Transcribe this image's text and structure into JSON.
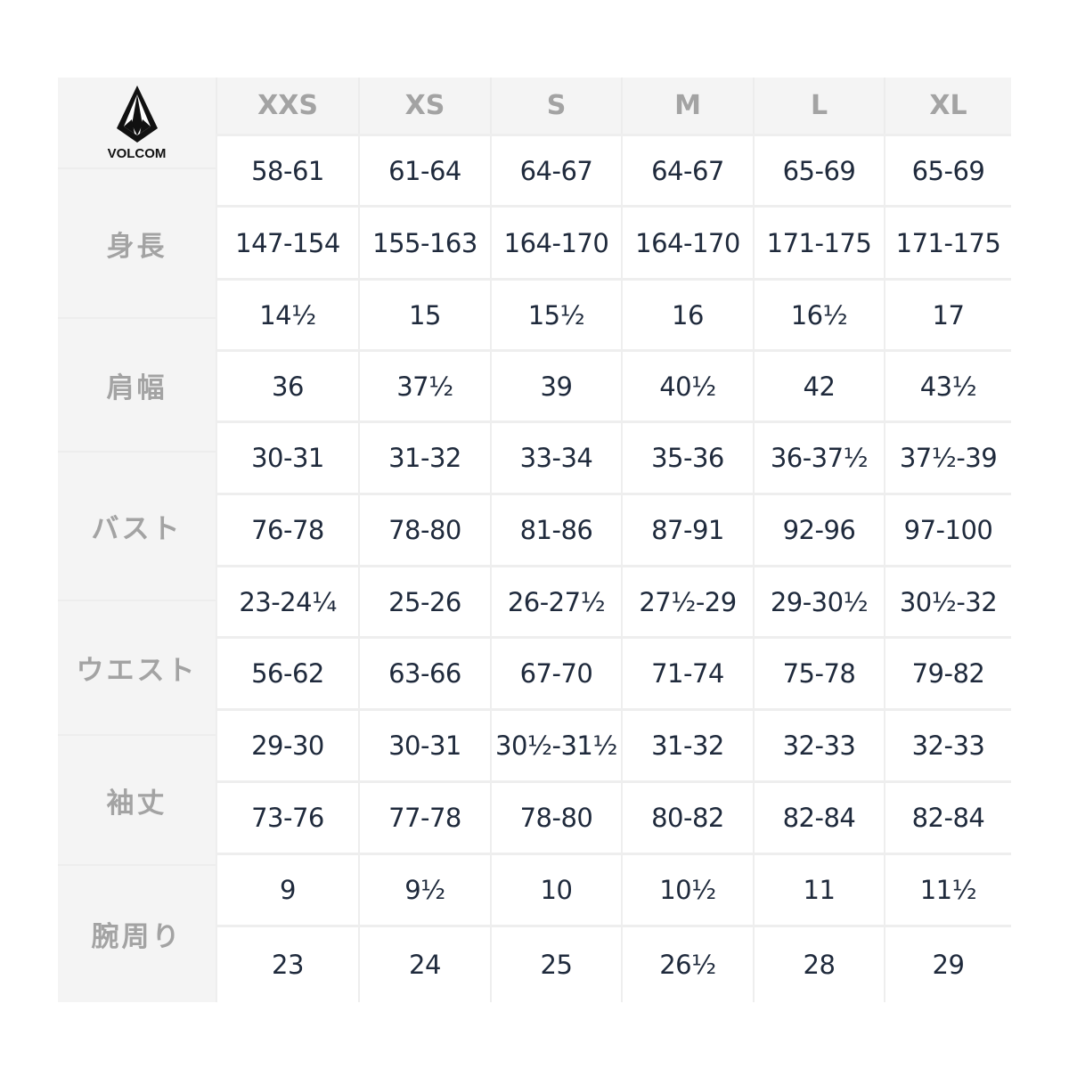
{
  "brand": {
    "name": "VOLCOM",
    "logo_icon": "volcom-stone-icon"
  },
  "sizes": [
    "XXS",
    "XS",
    "S",
    "M",
    "L",
    "XL"
  ],
  "labels": [
    {
      "label": "身長"
    },
    {
      "label": "肩幅"
    },
    {
      "label": "バスト"
    },
    {
      "label": "ウエスト"
    },
    {
      "label": "袖丈"
    },
    {
      "label": "腕周り"
    }
  ],
  "rows": [
    [
      "58-61",
      "61-64",
      "64-67",
      "64-67",
      "65-69",
      "65-69"
    ],
    [
      "147-154",
      "155-163",
      "164-170",
      "164-170",
      "171-175",
      "171-175"
    ],
    [
      "14½",
      "15",
      "15½",
      "16",
      "16½",
      "17"
    ],
    [
      "36",
      "37½",
      "39",
      "40½",
      "42",
      "43½"
    ],
    [
      "30-31",
      "31-32",
      "33-34",
      "35-36",
      "36-37½",
      "37½-39"
    ],
    [
      "76-78",
      "78-80",
      "81-86",
      "87-91",
      "92-96",
      "97-100"
    ],
    [
      "23-24¼",
      "25-26",
      "26-27½",
      "27½-29",
      "29-30½",
      "30½-32"
    ],
    [
      "56-62",
      "63-66",
      "67-70",
      "71-74",
      "75-78",
      "79-82"
    ],
    [
      "29-30",
      "30-31",
      "30½-31½",
      "31-32",
      "32-33",
      "32-33"
    ],
    [
      "73-76",
      "77-78",
      "78-80",
      "80-82",
      "82-84",
      "82-84"
    ],
    [
      "9",
      "9½",
      "10",
      "10½",
      "11",
      "11½"
    ],
    [
      "23",
      "24",
      "25",
      "26½",
      "28",
      "29"
    ]
  ],
  "colors": {
    "value_text": "#1f2a3c",
    "label_text": "#a3a3a3",
    "label_bg": "#f4f4f4"
  }
}
